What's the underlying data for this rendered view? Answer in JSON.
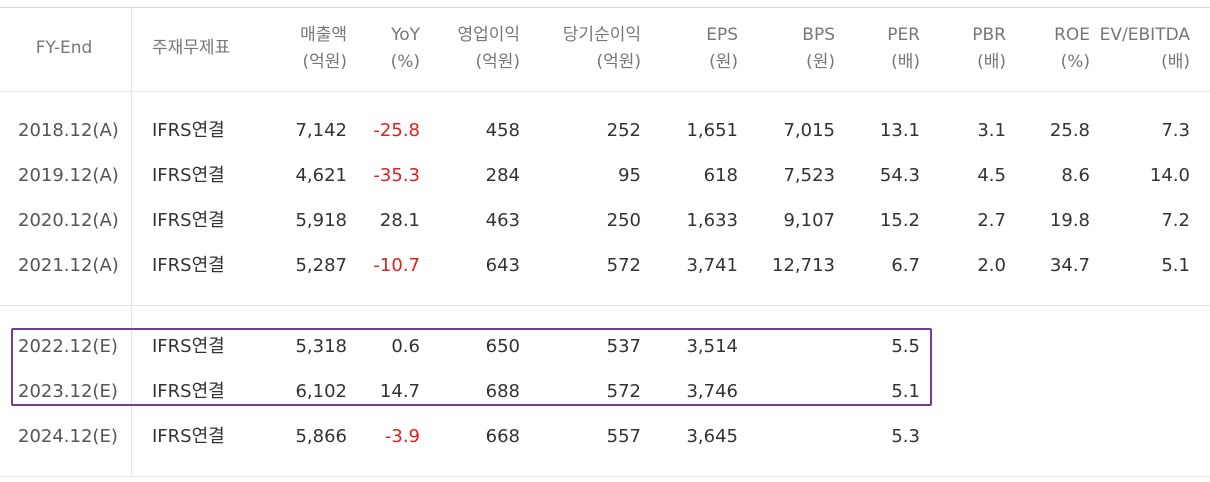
{
  "headers": [
    {
      "line1": "FY-End",
      "line2": ""
    },
    {
      "line1": "주재무제표",
      "line2": ""
    },
    {
      "line1": "매출액",
      "line2": "(억원)"
    },
    {
      "line1": "YoY",
      "line2": "(%)"
    },
    {
      "line1": "영업이익",
      "line2": "(억원)"
    },
    {
      "line1": "당기순이익",
      "line2": "(억원)"
    },
    {
      "line1": "EPS",
      "line2": "(원)"
    },
    {
      "line1": "BPS",
      "line2": "(원)"
    },
    {
      "line1": "PER",
      "line2": "(배)"
    },
    {
      "line1": "PBR",
      "line2": "(배)"
    },
    {
      "line1": "ROE",
      "line2": "(%)"
    },
    {
      "line1": "EV/EBITDA",
      "line2": "(배)"
    }
  ],
  "rows": [
    {
      "fy": "2018.12(A)",
      "fs": "IFRS연결",
      "sales": "7,142",
      "yoy": "-25.8",
      "op": "458",
      "net": "252",
      "eps": "1,651",
      "bps": "7,015",
      "per": "13.1",
      "pbr": "3.1",
      "roe": "25.8",
      "ev": "7.3"
    },
    {
      "fy": "2019.12(A)",
      "fs": "IFRS연결",
      "sales": "4,621",
      "yoy": "-35.3",
      "op": "284",
      "net": "95",
      "eps": "618",
      "bps": "7,523",
      "per": "54.3",
      "pbr": "4.5",
      "roe": "8.6",
      "ev": "14.0"
    },
    {
      "fy": "2020.12(A)",
      "fs": "IFRS연결",
      "sales": "5,918",
      "yoy": "28.1",
      "op": "463",
      "net": "250",
      "eps": "1,633",
      "bps": "9,107",
      "per": "15.2",
      "pbr": "2.7",
      "roe": "19.8",
      "ev": "7.2"
    },
    {
      "fy": "2021.12(A)",
      "fs": "IFRS연결",
      "sales": "5,287",
      "yoy": "-10.7",
      "op": "643",
      "net": "572",
      "eps": "3,741",
      "bps": "12,713",
      "per": "6.7",
      "pbr": "2.0",
      "roe": "34.7",
      "ev": "5.1"
    },
    {
      "fy": "2022.12(E)",
      "fs": "IFRS연결",
      "sales": "5,318",
      "yoy": "0.6",
      "op": "650",
      "net": "537",
      "eps": "3,514",
      "bps": "",
      "per": "5.5",
      "pbr": "",
      "roe": "",
      "ev": ""
    },
    {
      "fy": "2023.12(E)",
      "fs": "IFRS연결",
      "sales": "6,102",
      "yoy": "14.7",
      "op": "688",
      "net": "572",
      "eps": "3,746",
      "bps": "",
      "per": "5.1",
      "pbr": "",
      "roe": "",
      "ev": ""
    },
    {
      "fy": "2024.12(E)",
      "fs": "IFRS연결",
      "sales": "5,866",
      "yoy": "-3.9",
      "op": "668",
      "net": "557",
      "eps": "3,645",
      "bps": "",
      "per": "5.3",
      "pbr": "",
      "roe": "",
      "ev": ""
    }
  ],
  "colors": {
    "negative": "#e02020",
    "highlight_border": "#6a3fa0"
  }
}
